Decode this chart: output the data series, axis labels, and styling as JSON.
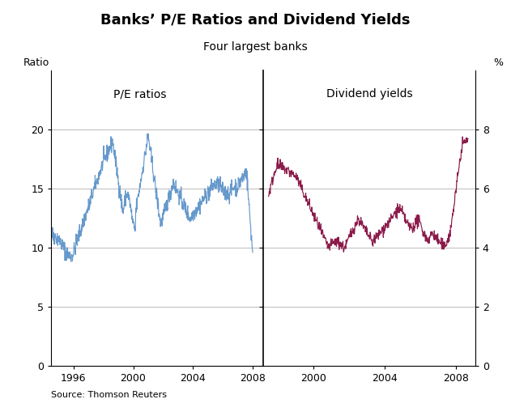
{
  "title": "Banks’ P/E Ratios and Dividend Yields",
  "subtitle": "Four largest banks",
  "left_ylabel": "Ratio",
  "right_ylabel": "%",
  "left_label": "P/E ratios",
  "right_label": "Dividend yields",
  "source": "Source: Thomson Reuters",
  "pe_color": "#6699CC",
  "div_color": "#8B1A4A",
  "background_color": "#FFFFFF",
  "grid_color": "#BBBBBB",
  "left_ylim": [
    0,
    25
  ],
  "right_ylim": [
    0,
    10
  ],
  "left_yticks": [
    0,
    5,
    10,
    15,
    20
  ],
  "right_yticks": [
    0,
    2,
    4,
    6,
    8
  ],
  "left_xticks": [
    1996,
    2000,
    2004,
    2008
  ],
  "right_xticks": [
    2000,
    2004,
    2008
  ],
  "left_xlim": [
    1994.5,
    2008.7
  ],
  "right_xlim": [
    1997.2,
    2009.1
  ]
}
